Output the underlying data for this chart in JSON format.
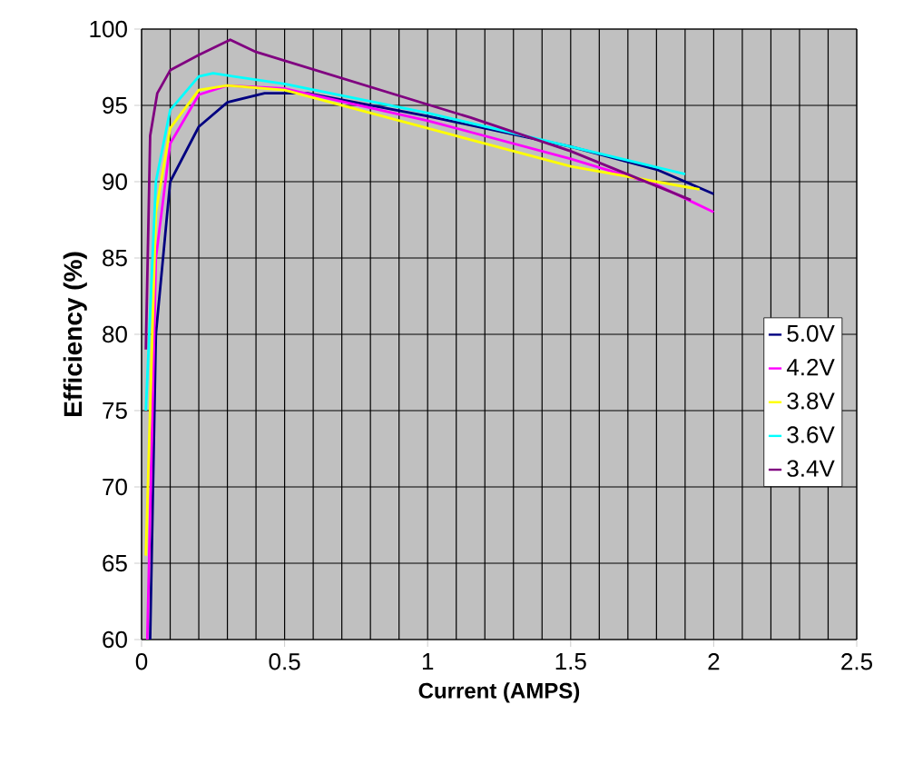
{
  "chart_data": {
    "type": "line",
    "xlabel": "Current (AMPS)",
    "ylabel": "Efficiency (%)",
    "xlim": [
      0,
      2.5
    ],
    "ylim": [
      60,
      100
    ],
    "xticks": [
      0,
      0.5,
      1,
      1.5,
      2,
      2.5
    ],
    "yticks": [
      60,
      65,
      70,
      75,
      80,
      85,
      90,
      95,
      100
    ],
    "grid": true,
    "legend": "right",
    "marker": "none",
    "line_style": "solid",
    "series": [
      {
        "name": "5.0V",
        "color": "#000080",
        "x": [
          0.03,
          0.05,
          0.1,
          0.2,
          0.3,
          0.43,
          0.58,
          1.0,
          1.5,
          1.8,
          2.0
        ],
        "values": [
          60,
          80,
          90,
          93.6,
          95.2,
          95.8,
          95.8,
          94.3,
          92.3,
          90.8,
          89.2
        ]
      },
      {
        "name": "4.2V",
        "color": "#ff00ff",
        "x": [
          0.02,
          0.05,
          0.1,
          0.2,
          0.3,
          0.5,
          1.0,
          1.5,
          1.8,
          2.0
        ],
        "values": [
          60,
          85,
          92.5,
          95.7,
          96.3,
          96.1,
          94,
          91.5,
          89.8,
          88
        ]
      },
      {
        "name": "3.8V",
        "color": "#ffff00",
        "x": [
          0.015,
          0.05,
          0.1,
          0.2,
          0.3,
          0.5,
          1.0,
          1.5,
          1.95
        ],
        "values": [
          65.5,
          88,
          93.5,
          96,
          96.3,
          96,
          93.5,
          91,
          89.5
        ]
      },
      {
        "name": "3.6V",
        "color": "#00ffff",
        "x": [
          0.015,
          0.05,
          0.1,
          0.2,
          0.25,
          0.5,
          1.0,
          1.5,
          1.9
        ],
        "values": [
          75,
          90,
          94.7,
          96.9,
          97.1,
          96.4,
          94.5,
          92.3,
          90.5
        ]
      },
      {
        "name": "3.4V",
        "color": "#800080",
        "x": [
          0.015,
          0.03,
          0.055,
          0.1,
          0.2,
          0.31,
          0.4,
          1.15,
          1.5,
          1.92
        ],
        "values": [
          79,
          93,
          95.8,
          97.3,
          98.3,
          99.3,
          98.5,
          94.2,
          92,
          88.8
        ]
      }
    ]
  }
}
